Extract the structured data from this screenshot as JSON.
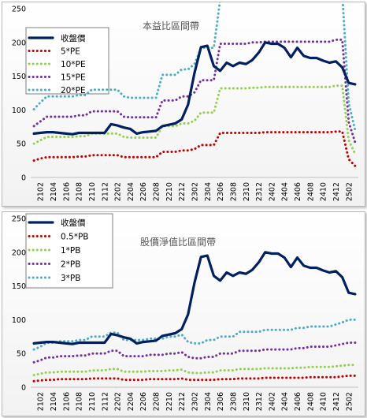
{
  "chart_data": [
    {
      "type": "line",
      "title": "本益比區間帶",
      "x": [
        "2101",
        "2102",
        "2103",
        "2104",
        "2105",
        "2106",
        "2107",
        "2108",
        "2109",
        "2110",
        "2111",
        "2112",
        "2201",
        "2202",
        "2203",
        "2204",
        "2205",
        "2206",
        "2207",
        "2208",
        "2209",
        "2210",
        "2211",
        "2212",
        "2301",
        "2302",
        "2303",
        "2304",
        "2305",
        "2306",
        "2307",
        "2308",
        "2309",
        "2310",
        "2311",
        "2312",
        "2401",
        "2402",
        "2403",
        "2404",
        "2405",
        "2406",
        "2407",
        "2408",
        "2409",
        "2410",
        "2411",
        "2412",
        "2501",
        "2502",
        "2503"
      ],
      "xticks": [
        "2102",
        "2104",
        "2106",
        "2108",
        "2110",
        "2112",
        "2202",
        "2204",
        "2206",
        "2208",
        "2210",
        "2212",
        "2302",
        "2304",
        "2306",
        "2308",
        "2310",
        "2312",
        "2402",
        "2404",
        "2406",
        "2408",
        "2410",
        "2412",
        "2502"
      ],
      "ylim": [
        0,
        250
      ],
      "yticks": [
        0,
        50,
        100,
        150,
        200,
        250
      ],
      "series": [
        {
          "name": "收盤價",
          "color": "#002060",
          "style": "solid",
          "values": [
            65,
            66,
            67,
            67,
            66,
            65,
            64,
            66,
            66,
            66,
            66,
            66,
            79,
            77,
            74,
            72,
            65,
            67,
            68,
            69,
            76,
            78,
            80,
            86,
            108,
            155,
            193,
            195,
            165,
            158,
            170,
            165,
            170,
            168,
            174,
            185,
            200,
            198,
            198,
            192,
            178,
            192,
            180,
            177,
            177,
            173,
            170,
            172,
            163,
            140,
            138
          ]
        },
        {
          "name": "5*PE",
          "color": "#c00000",
          "style": "dot",
          "values": [
            25,
            28,
            30,
            30,
            30,
            30,
            30,
            31,
            31,
            33,
            33,
            33,
            33,
            33,
            30,
            30,
            30,
            30,
            30,
            30,
            38,
            38,
            38,
            40,
            40,
            42,
            48,
            48,
            48,
            66,
            66,
            66,
            66,
            66,
            66,
            66,
            67,
            67,
            67,
            67,
            67,
            67,
            67,
            67,
            67,
            67,
            67,
            68,
            68,
            27,
            17
          ]
        },
        {
          "name": "10*PE",
          "color": "#92d050",
          "style": "dot",
          "values": [
            50,
            55,
            60,
            60,
            60,
            60,
            60,
            61,
            61,
            65,
            65,
            65,
            65,
            65,
            60,
            59,
            59,
            59,
            59,
            59,
            76,
            76,
            76,
            80,
            80,
            84,
            96,
            96,
            96,
            132,
            132,
            132,
            132,
            132,
            133,
            133,
            134,
            134,
            134,
            134,
            134,
            134,
            134,
            134,
            134,
            134,
            134,
            136,
            136,
            55,
            35
          ]
        },
        {
          "name": "15*PE",
          "color": "#7030a0",
          "style": "dot",
          "values": [
            76,
            83,
            90,
            90,
            90,
            90,
            90,
            92,
            92,
            98,
            98,
            98,
            98,
            98,
            90,
            89,
            89,
            89,
            89,
            89,
            114,
            114,
            114,
            120,
            120,
            126,
            144,
            144,
            144,
            198,
            198,
            198,
            198,
            198,
            200,
            200,
            201,
            201,
            201,
            201,
            201,
            201,
            201,
            201,
            201,
            201,
            201,
            204,
            204,
            82,
            52
          ]
        },
        {
          "name": "20*PE",
          "color": "#4bacc6",
          "style": "dot",
          "values": [
            101,
            111,
            120,
            120,
            120,
            120,
            120,
            122,
            122,
            130,
            130,
            130,
            130,
            130,
            120,
            118,
            118,
            118,
            118,
            118,
            152,
            152,
            152,
            160,
            160,
            168,
            192,
            192,
            192,
            264,
            264,
            264,
            264,
            264,
            266,
            266,
            268,
            268,
            268,
            268,
            268,
            268,
            268,
            268,
            268,
            268,
            268,
            272,
            272,
            110,
            70
          ]
        }
      ]
    },
    {
      "type": "line",
      "title": "股價淨值比區間帶",
      "x": [
        "2101",
        "2102",
        "2103",
        "2104",
        "2105",
        "2106",
        "2107",
        "2108",
        "2109",
        "2110",
        "2111",
        "2112",
        "2201",
        "2202",
        "2203",
        "2204",
        "2205",
        "2206",
        "2207",
        "2208",
        "2209",
        "2210",
        "2211",
        "2212",
        "2301",
        "2302",
        "2303",
        "2304",
        "2305",
        "2306",
        "2307",
        "2308",
        "2309",
        "2310",
        "2311",
        "2312",
        "2401",
        "2402",
        "2403",
        "2404",
        "2405",
        "2406",
        "2407",
        "2408",
        "2409",
        "2410",
        "2411",
        "2412",
        "2501",
        "2502",
        "2503"
      ],
      "xticks": [
        "2102",
        "2104",
        "2106",
        "2108",
        "2110",
        "2112",
        "2202",
        "2204",
        "2206",
        "2208",
        "2210",
        "2212",
        "2302",
        "2304",
        "2306",
        "2308",
        "2310",
        "2312",
        "2402",
        "2404",
        "2406",
        "2408",
        "2410",
        "2412",
        "2502"
      ],
      "ylim": [
        0,
        250
      ],
      "yticks": [
        0,
        50,
        100,
        150,
        200,
        250
      ],
      "series": [
        {
          "name": "收盤價",
          "color": "#002060",
          "style": "solid",
          "values": [
            65,
            66,
            67,
            67,
            66,
            65,
            64,
            66,
            66,
            66,
            66,
            66,
            79,
            77,
            74,
            72,
            65,
            67,
            68,
            69,
            76,
            78,
            80,
            86,
            108,
            155,
            193,
            195,
            165,
            158,
            170,
            165,
            170,
            168,
            174,
            185,
            200,
            198,
            198,
            192,
            178,
            192,
            180,
            177,
            177,
            173,
            170,
            172,
            163,
            140,
            138
          ]
        },
        {
          "name": "0.5*PB",
          "color": "#c00000",
          "style": "dot",
          "values": [
            9,
            10,
            11,
            11,
            12,
            12,
            12,
            12,
            12,
            13,
            13,
            13,
            13,
            13,
            11,
            11,
            11,
            11,
            12,
            12,
            12,
            12,
            12,
            13,
            11,
            11,
            11,
            11,
            11,
            12,
            12,
            12,
            13,
            13,
            13,
            13,
            14,
            14,
            14,
            14,
            14,
            14,
            14,
            15,
            15,
            15,
            15,
            15,
            16,
            17,
            17
          ]
        },
        {
          "name": "1*PB",
          "color": "#92d050",
          "style": "dot",
          "values": [
            18,
            20,
            22,
            22,
            23,
            23,
            23,
            23,
            23,
            25,
            25,
            25,
            27,
            27,
            23,
            23,
            23,
            23,
            24,
            24,
            24,
            25,
            25,
            26,
            22,
            21,
            21,
            22,
            22,
            25,
            25,
            25,
            27,
            27,
            27,
            27,
            28,
            28,
            28,
            28,
            28,
            29,
            29,
            30,
            30,
            30,
            30,
            31,
            32,
            33,
            33
          ]
        },
        {
          "name": "2*PB",
          "color": "#7030a0",
          "style": "dot",
          "values": [
            37,
            40,
            44,
            44,
            46,
            46,
            46,
            47,
            47,
            50,
            50,
            50,
            54,
            54,
            46,
            46,
            46,
            46,
            48,
            48,
            48,
            50,
            50,
            52,
            45,
            43,
            43,
            45,
            45,
            50,
            50,
            50,
            54,
            54,
            54,
            54,
            56,
            56,
            56,
            56,
            56,
            58,
            58,
            60,
            60,
            60,
            60,
            62,
            64,
            66,
            66
          ]
        },
        {
          "name": "3*PB",
          "color": "#4bacc6",
          "style": "dot",
          "values": [
            56,
            60,
            66,
            66,
            68,
            68,
            68,
            70,
            70,
            75,
            75,
            75,
            81,
            81,
            70,
            70,
            70,
            70,
            72,
            72,
            72,
            75,
            75,
            78,
            67,
            65,
            65,
            70,
            70,
            75,
            75,
            75,
            82,
            82,
            82,
            82,
            85,
            85,
            85,
            85,
            85,
            88,
            88,
            90,
            90,
            90,
            90,
            93,
            96,
            100,
            100
          ]
        }
      ]
    }
  ]
}
